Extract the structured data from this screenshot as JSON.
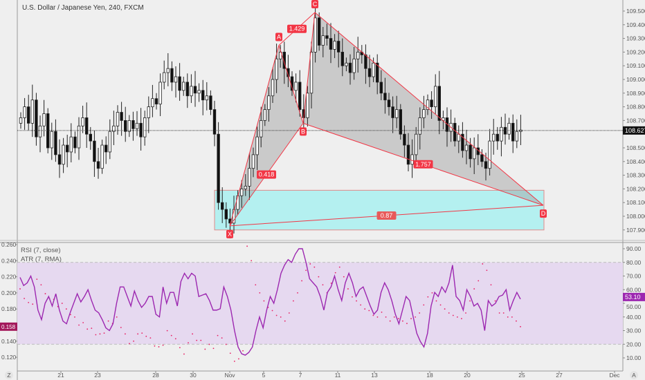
{
  "header": {
    "title": "U.S. Dollar / Japanese Yen, 240, FXCM"
  },
  "price_axis": {
    "ticks": [
      "109.500",
      "109.400",
      "109.300",
      "109.200",
      "109.100",
      "109.000",
      "108.900",
      "108.800",
      "108.700",
      "108.500",
      "108.400",
      "108.300",
      "108.200",
      "108.100",
      "108.000",
      "107.900"
    ],
    "last_price": "108.627"
  },
  "indicators": {
    "rsi_label": "RSI (7, close)",
    "atr_label": "ATR (7, RMA)",
    "rsi_ticks": [
      "90.00",
      "80.00",
      "70.00",
      "60.00",
      "50.00",
      "40.00",
      "30.00",
      "20.00",
      "10.00"
    ],
    "rsi_last": "53.10",
    "atr_ticks": [
      "0.260",
      "0.240",
      "0.220",
      "0.200",
      "0.180",
      "0.140",
      "0.120"
    ],
    "atr_last": "0.158"
  },
  "time_axis": {
    "ticks": [
      "21",
      "23",
      "28",
      "30",
      "Nov",
      "5",
      "7",
      "11",
      "13",
      "18",
      "20",
      "25",
      "27",
      "Dec"
    ]
  },
  "buttons": {
    "left": "Z",
    "right": "A"
  },
  "colors": {
    "pattern_line": "#f23645",
    "pattern_fill": "#9e9e9e",
    "target_zone": "#b4f0f0",
    "rsi": "#9c27b0",
    "atr": "#e91e63",
    "rsi_band": "#e6d9f0",
    "up_candle": "#ffffff",
    "down_candle": "#111111"
  },
  "chart_data": [
    {
      "type": "candlestick",
      "title": "U.S. Dollar / Japanese Yen, 240, FXCM",
      "ylim": [
        107.85,
        109.58
      ],
      "close": [
        108.72,
        108.8,
        108.68,
        108.85,
        108.58,
        108.66,
        108.75,
        108.5,
        108.62,
        108.45,
        108.38,
        108.52,
        108.47,
        108.58,
        108.5,
        108.66,
        108.72,
        108.6,
        108.55,
        108.4,
        108.35,
        108.52,
        108.47,
        108.62,
        108.66,
        108.76,
        108.7,
        108.62,
        108.7,
        108.64,
        108.68,
        108.58,
        108.72,
        108.8,
        108.86,
        108.82,
        108.98,
        109.05,
        109.08,
        108.98,
        109.02,
        108.92,
        108.98,
        108.88,
        108.95,
        108.9,
        108.92,
        108.85,
        108.88,
        108.78,
        108.6,
        108.1,
        108.05,
        107.98,
        107.95,
        108.05,
        108.15,
        108.2,
        108.22,
        108.35,
        108.45,
        108.58,
        108.7,
        108.78,
        108.88,
        109.0,
        109.15,
        109.2,
        109.08,
        109.02,
        108.92,
        108.98,
        108.78,
        108.72,
        108.9,
        109.2,
        109.45,
        109.25,
        109.32,
        109.3,
        109.22,
        109.28,
        109.2,
        109.1,
        109.12,
        109.05,
        109.15,
        109.2,
        109.18,
        109.08,
        109.02,
        109.12,
        108.98,
        108.9,
        108.85,
        108.8,
        108.72,
        108.78,
        108.6,
        108.52,
        108.38,
        108.45,
        108.6,
        108.72,
        108.78,
        108.85,
        108.8,
        108.95,
        108.7,
        108.72,
        108.62,
        108.68,
        108.55,
        108.6,
        108.48,
        108.52,
        108.42,
        108.5,
        108.45,
        108.4,
        108.35,
        108.55,
        108.6,
        108.55,
        108.65,
        108.6,
        108.68,
        108.55,
        108.62,
        108.63
      ]
    },
    {
      "type": "harmonic_pattern",
      "points": [
        {
          "label": "X",
          "price": 107.93
        },
        {
          "label": "A",
          "price": 109.25
        },
        {
          "label": "B",
          "price": 108.68
        },
        {
          "label": "C",
          "price": 109.49
        },
        {
          "label": "D",
          "price": 108.08
        }
      ],
      "ratios": {
        "XB": "0.418",
        "AC": "1.429",
        "BD": "1.757",
        "XD": "0.87"
      },
      "target_zone": [
        107.9,
        108.19
      ]
    },
    {
      "type": "line",
      "name": "RSI (7, close)",
      "ylim": [
        5,
        95
      ],
      "bands": [
        20,
        80
      ],
      "values": [
        69,
        63,
        65,
        70,
        62,
        45,
        38,
        50,
        55,
        48,
        57,
        45,
        37,
        35,
        43,
        50,
        57,
        51,
        55,
        60,
        52,
        45,
        43,
        38,
        32,
        30,
        35,
        50,
        62,
        62,
        55,
        48,
        59,
        52,
        47,
        50,
        55,
        55,
        42,
        40,
        62,
        50,
        58,
        58,
        48,
        66,
        72,
        68,
        72,
        70,
        55,
        56,
        57,
        52,
        45,
        45,
        46,
        62,
        55,
        45,
        30,
        18,
        13,
        12,
        14,
        18,
        30,
        40,
        32,
        45,
        55,
        50,
        60,
        72,
        78,
        82,
        80,
        86,
        90,
        90,
        80,
        68,
        65,
        62,
        55,
        45,
        58,
        62,
        70,
        60,
        52,
        65,
        72,
        65,
        55,
        60,
        62,
        55,
        48,
        42,
        45,
        58,
        65,
        60,
        52,
        42,
        35,
        45,
        55,
        52,
        40,
        28,
        22,
        18,
        28,
        48,
        58,
        55,
        62,
        58,
        65,
        78,
        55,
        52,
        45,
        60,
        55,
        48,
        50,
        45,
        30,
        52,
        48,
        50,
        55,
        56,
        60,
        45,
        52,
        58,
        53.1
      ]
    },
    {
      "type": "scatter",
      "name": "ATR (7, RMA)",
      "ylim": [
        0.11,
        0.265
      ],
      "values": [
        0.205,
        0.193,
        0.188,
        0.186,
        0.217,
        0.21,
        0.199,
        0.193,
        0.192,
        0.183,
        0.187,
        0.18,
        0.173,
        0.17,
        0.16,
        0.163,
        0.155,
        0.156,
        0.148,
        0.149,
        0.15,
        0.165,
        0.162,
        0.17,
        0.157,
        0.149,
        0.137,
        0.14,
        0.149,
        0.15,
        0.146,
        0.144,
        0.134,
        0.133,
        0.135,
        0.153,
        0.147,
        0.143,
        0.132,
        0.124,
        0.138,
        0.149,
        0.141,
        0.141,
        0.13,
        0.136,
        0.131,
        0.147,
        0.144,
        0.136,
        0.125,
        0.115,
        0.118,
        0.128,
        0.258,
        0.24,
        0.21,
        0.2,
        0.19,
        0.182,
        0.178,
        0.172,
        0.17,
        0.165,
        0.175,
        0.19,
        0.2,
        0.215,
        0.228,
        0.236,
        0.232,
        0.22,
        0.21,
        0.2,
        0.212,
        0.225,
        0.232,
        0.22,
        0.205,
        0.195,
        0.19,
        0.185,
        0.18,
        0.178,
        0.172,
        0.17,
        0.176,
        0.17,
        0.165,
        0.17,
        0.168,
        0.165,
        0.162,
        0.168,
        0.17,
        0.175,
        0.185,
        0.195,
        0.2,
        0.19,
        0.185,
        0.18,
        0.175,
        0.172,
        0.17,
        0.168,
        0.175,
        0.19,
        0.205,
        0.215,
        0.236,
        0.228,
        0.21,
        0.19,
        0.175,
        0.175,
        0.17,
        0.17,
        0.165,
        0.158
      ]
    }
  ]
}
